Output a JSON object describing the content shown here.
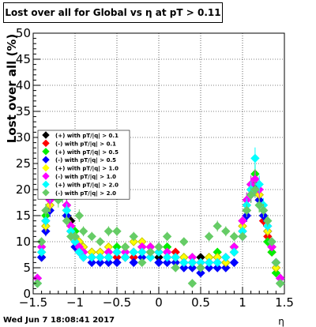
{
  "title": "Lost over all for Global vs   η at pT > 0.11",
  "timestamp": "Wed Jun  7 18:08:41 2017",
  "chart_data": {
    "type": "scatter",
    "title": "Lost over all for Global vs   η at pT > 0.11",
    "xlabel": "η",
    "ylabel": "Lost over all (%)",
    "xlim": [
      -1.5,
      1.5
    ],
    "ylim": [
      0,
      50
    ],
    "xticks": [
      -1.5,
      -1,
      -0.5,
      0,
      0.5,
      1,
      1.5
    ],
    "xtick_labels": [
      "−1.5",
      "−1",
      "−0.5",
      "0",
      "0.5",
      "1",
      "1.5"
    ],
    "yticks": [
      0,
      5,
      10,
      15,
      20,
      25,
      30,
      35,
      40,
      45,
      50
    ],
    "ytick_labels": [
      "0",
      "5",
      "10",
      "15",
      "20",
      "25",
      "30",
      "35",
      "40",
      "45",
      "50"
    ],
    "grid": true,
    "legend_position": "left-middle",
    "series": [
      {
        "name": "(+) with pT/|q| > 0.1",
        "color": "#000000",
        "marker": "diamond",
        "x": [
          -1.45,
          -1.4,
          -1.35,
          -1.3,
          -1.25,
          -1.2,
          -1.15,
          -1.1,
          -1.05,
          -1.0,
          -0.95,
          -0.9,
          -0.8,
          -0.7,
          -0.6,
          -0.5,
          -0.4,
          -0.3,
          -0.2,
          -0.1,
          0.0,
          0.1,
          0.2,
          0.3,
          0.4,
          0.5,
          0.6,
          0.7,
          0.8,
          0.9,
          1.0,
          1.05,
          1.1,
          1.15,
          1.2,
          1.25,
          1.3,
          1.35,
          1.4,
          1.45
        ],
        "y": [
          2,
          7,
          13,
          17,
          20,
          24,
          22,
          17,
          14,
          11,
          9,
          8,
          7,
          8,
          7,
          8,
          7,
          8,
          9,
          8,
          7,
          8,
          7,
          6,
          6,
          7,
          6,
          7,
          6,
          8,
          12,
          16,
          19,
          21,
          18,
          15,
          12,
          9,
          6,
          3
        ]
      },
      {
        "name": "(-) with pT/|q| > 0.1",
        "color": "#ff0000",
        "marker": "diamond",
        "x": [
          -1.45,
          -1.4,
          -1.35,
          -1.3,
          -1.25,
          -1.2,
          -1.15,
          -1.1,
          -1.05,
          -1.0,
          -0.95,
          -0.9,
          -0.8,
          -0.7,
          -0.6,
          -0.5,
          -0.4,
          -0.3,
          -0.2,
          -0.1,
          0.0,
          0.1,
          0.2,
          0.3,
          0.4,
          0.5,
          0.6,
          0.7,
          0.8,
          0.9,
          1.0,
          1.05,
          1.1,
          1.15,
          1.2,
          1.25,
          1.3,
          1.35,
          1.4,
          1.45
        ],
        "y": [
          3,
          8,
          14,
          18,
          21,
          23,
          21,
          16,
          13,
          10,
          9,
          8,
          8,
          7,
          8,
          7,
          8,
          7,
          8,
          9,
          8,
          7,
          8,
          7,
          6,
          6,
          7,
          6,
          7,
          9,
          13,
          17,
          20,
          22,
          19,
          14,
          11,
          8,
          5,
          2
        ]
      },
      {
        "name": "(+) with pT/|q| > 0.5",
        "color": "#00ee00",
        "marker": "diamond",
        "x": [
          -1.45,
          -1.4,
          -1.35,
          -1.3,
          -1.25,
          -1.2,
          -1.15,
          -1.1,
          -1.05,
          -1.0,
          -0.95,
          -0.9,
          -0.8,
          -0.7,
          -0.6,
          -0.5,
          -0.4,
          -0.3,
          -0.2,
          -0.1,
          0.0,
          0.1,
          0.2,
          0.3,
          0.4,
          0.5,
          0.6,
          0.7,
          0.8,
          0.9,
          1.0,
          1.05,
          1.1,
          1.15,
          1.2,
          1.25,
          1.3,
          1.35,
          1.4,
          1.45
        ],
        "y": [
          2,
          9,
          15,
          18,
          22,
          25,
          20,
          15,
          12,
          12,
          10,
          9,
          8,
          7,
          8,
          9,
          7,
          8,
          9,
          7,
          8,
          9,
          6,
          7,
          7,
          5,
          7,
          8,
          6,
          9,
          14,
          18,
          21,
          23,
          17,
          15,
          10,
          8,
          4,
          2
        ]
      },
      {
        "name": "(-) with pT/|q| > 0.5",
        "color": "#0000ff",
        "marker": "diamond",
        "x": [
          -1.45,
          -1.4,
          -1.35,
          -1.3,
          -1.25,
          -1.2,
          -1.15,
          -1.1,
          -1.05,
          -1.0,
          -0.95,
          -0.9,
          -0.8,
          -0.7,
          -0.6,
          -0.5,
          -0.4,
          -0.3,
          -0.2,
          -0.1,
          0.0,
          0.1,
          0.2,
          0.3,
          0.4,
          0.5,
          0.6,
          0.7,
          0.8,
          0.9,
          1.0,
          1.05,
          1.1,
          1.15,
          1.2,
          1.25,
          1.3,
          1.35,
          1.4,
          1.45
        ],
        "y": [
          3,
          7,
          12,
          16,
          20,
          22,
          19,
          15,
          12,
          9,
          8,
          7,
          6,
          6,
          6,
          6,
          7,
          6,
          7,
          7,
          6,
          6,
          6,
          5,
          5,
          4,
          5,
          5,
          5,
          6,
          11,
          15,
          19,
          20,
          18,
          15,
          12,
          9,
          6,
          3
        ]
      },
      {
        "name": "(+) with pT/|q| > 1.0",
        "color": "#ffff00",
        "marker": "diamond",
        "x": [
          -1.45,
          -1.4,
          -1.35,
          -1.3,
          -1.25,
          -1.2,
          -1.15,
          -1.1,
          -1.05,
          -1.0,
          -0.95,
          -0.9,
          -0.8,
          -0.7,
          -0.6,
          -0.5,
          -0.4,
          -0.3,
          -0.2,
          -0.1,
          0.0,
          0.1,
          0.2,
          0.3,
          0.4,
          0.5,
          0.6,
          0.7,
          0.8,
          0.9,
          1.0,
          1.05,
          1.1,
          1.15,
          1.2,
          1.25,
          1.3,
          1.35,
          1.4,
          1.45
        ],
        "y": [
          2,
          8,
          13,
          17,
          21,
          23,
          20,
          16,
          13,
          11,
          10,
          9,
          8,
          8,
          9,
          8,
          9,
          10,
          10,
          9,
          8,
          8,
          7,
          7,
          6,
          6,
          7,
          7,
          6,
          8,
          13,
          17,
          20,
          22,
          19,
          16,
          12,
          9,
          5,
          2
        ]
      },
      {
        "name": "(-) with pT/|q| > 1.0",
        "color": "#ff00ff",
        "marker": "diamond",
        "x": [
          -1.45,
          -1.4,
          -1.35,
          -1.3,
          -1.25,
          -1.2,
          -1.15,
          -1.1,
          -1.05,
          -1.0,
          -0.95,
          -0.9,
          -0.8,
          -0.7,
          -0.6,
          -0.5,
          -0.4,
          -0.3,
          -0.2,
          -0.1,
          0.0,
          0.1,
          0.2,
          0.3,
          0.4,
          0.5,
          0.6,
          0.7,
          0.8,
          0.9,
          1.0,
          1.05,
          1.1,
          1.15,
          1.2,
          1.25,
          1.3,
          1.35,
          1.4,
          1.45
        ],
        "y": [
          3,
          9,
          14,
          18,
          21,
          24,
          21,
          17,
          13,
          10,
          9,
          8,
          7,
          7,
          8,
          8,
          8,
          8,
          9,
          9,
          8,
          8,
          7,
          6,
          7,
          6,
          6,
          6,
          7,
          9,
          14,
          18,
          21,
          22,
          20,
          16,
          13,
          9,
          6,
          3
        ]
      },
      {
        "name": "(+) with pT/|q| > 2.0",
        "color": "#00ffff",
        "marker": "diamond",
        "x": [
          -1.45,
          -1.4,
          -1.35,
          -1.3,
          -1.25,
          -1.2,
          -1.15,
          -1.1,
          -1.05,
          -1.0,
          -0.95,
          -0.9,
          -0.8,
          -0.7,
          -0.6,
          -0.5,
          -0.4,
          -0.3,
          -0.2,
          -0.1,
          0.0,
          0.1,
          0.2,
          0.3,
          0.4,
          0.5,
          0.6,
          0.7,
          0.8,
          0.9,
          1.0,
          1.05,
          1.1,
          1.15,
          1.2,
          1.25,
          1.3,
          1.35,
          1.4,
          1.45
        ],
        "y": [
          2,
          8,
          14,
          19,
          22,
          26,
          22,
          16,
          12,
          10,
          8,
          7,
          7,
          7,
          7,
          8,
          7,
          8,
          8,
          7,
          8,
          7,
          7,
          6,
          6,
          6,
          6,
          6,
          7,
          8,
          12,
          17,
          20,
          26,
          21,
          17,
          13,
          10,
          6,
          2
        ]
      },
      {
        "name": "(-) with pT/|q| > 2.0",
        "color": "#66cc66",
        "marker": "diamond",
        "x": [
          -1.45,
          -1.4,
          -1.35,
          -1.3,
          -1.25,
          -1.2,
          -1.15,
          -1.1,
          -1.05,
          -1.0,
          -0.95,
          -0.9,
          -0.8,
          -0.7,
          -0.6,
          -0.5,
          -0.4,
          -0.3,
          -0.2,
          -0.1,
          0.0,
          0.1,
          0.2,
          0.3,
          0.4,
          0.5,
          0.6,
          0.7,
          0.8,
          0.9,
          1.0,
          1.05,
          1.1,
          1.15,
          1.2,
          1.25,
          1.3,
          1.35,
          1.4,
          1.45
        ],
        "y": [
          2,
          10,
          16,
          20,
          24,
          18,
          19,
          14,
          11,
          11,
          15,
          12,
          11,
          10,
          12,
          12,
          9,
          11,
          6,
          8,
          9,
          11,
          5,
          10,
          2,
          5,
          11,
          13,
          12,
          11,
          11,
          16,
          19,
          20,
          17,
          16,
          14,
          10,
          6,
          2
        ]
      }
    ]
  }
}
